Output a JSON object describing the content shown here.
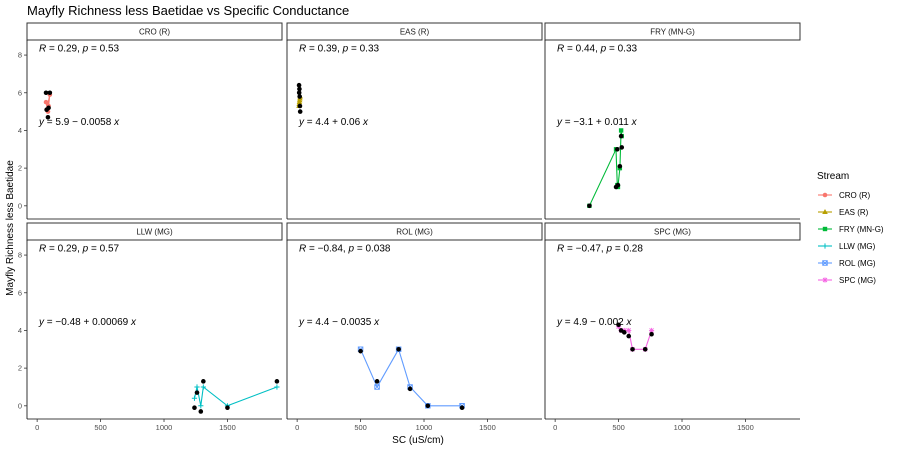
{
  "chart_data": {
    "type": "scatter",
    "title": "Mayfly Richness less Baetidae vs Specific Conductance",
    "xlabel": "SC (uS/cm)",
    "ylabel": "Mayfly Richness less Baetidae",
    "xlim": [
      -80,
      1930
    ],
    "ylim": [
      -0.7,
      8.8
    ],
    "xticks": [
      0,
      500,
      1000,
      1500
    ],
    "yticks": [
      0,
      2,
      4,
      6,
      8
    ],
    "legend": {
      "title": "Stream",
      "position": "right"
    },
    "panels": [
      {
        "strip": "CRO (R)",
        "series": "CRO (R)",
        "color": "#F8766D",
        "marker": "circle",
        "stat_R": "0.29",
        "stat_p": "0.53",
        "eq_a": "5.9",
        "eq_op": "−",
        "eq_b": "0.0058",
        "observed": [
          [
            70,
            6.0
          ],
          [
            85,
            4.7
          ],
          [
            90,
            5.2
          ],
          [
            100,
            6.0
          ],
          [
            75,
            5.1
          ]
        ],
        "fitted": [
          [
            70,
            5.5
          ],
          [
            85,
            5.0
          ],
          [
            90,
            5.3
          ],
          [
            100,
            5.9
          ],
          [
            75,
            5.1
          ]
        ]
      },
      {
        "strip": "EAS (R)",
        "series": "EAS (R)",
        "color": "#B79F00",
        "marker": "triangle",
        "stat_R": "0.39",
        "stat_p": "0.33",
        "eq_a": "4.4",
        "eq_op": "+",
        "eq_b": "0.06",
        "observed": [
          [
            15,
            6.4
          ],
          [
            18,
            6.2
          ],
          [
            20,
            5.8
          ],
          [
            22,
            5.3
          ],
          [
            24,
            5.0
          ],
          [
            16,
            6.0
          ]
        ],
        "fitted": [
          [
            15,
            5.3
          ],
          [
            18,
            5.5
          ],
          [
            20,
            5.6
          ],
          [
            22,
            5.7
          ],
          [
            24,
            5.8
          ],
          [
            16,
            5.4
          ]
        ]
      },
      {
        "strip": "FRY (MN-G)",
        "series": "FRY (MN-G)",
        "color": "#00BA38",
        "marker": "square",
        "stat_R": "0.44",
        "stat_p": "0.33",
        "eq_a": "−3.1",
        "eq_op": "+",
        "eq_b": "0.011",
        "observed": [
          [
            270,
            0.0
          ],
          [
            480,
            1.0
          ],
          [
            490,
            3.0
          ],
          [
            495,
            1.1
          ],
          [
            510,
            2.1
          ],
          [
            520,
            3.7
          ],
          [
            525,
            3.1
          ]
        ],
        "fitted": [
          [
            270,
            0.0
          ],
          [
            480,
            3.0
          ],
          [
            490,
            1.1
          ],
          [
            495,
            1.0
          ],
          [
            510,
            2.0
          ],
          [
            520,
            4.0
          ],
          [
            525,
            3.7
          ]
        ]
      },
      {
        "strip": "LLW (MG)",
        "series": "LLW (MG)",
        "color": "#00BFC4",
        "marker": "plus",
        "stat_R": "0.29",
        "stat_p": "0.57",
        "eq_a": "−0.48",
        "eq_op": "+",
        "eq_b": "0.00069",
        "observed": [
          [
            1240,
            -0.1
          ],
          [
            1260,
            0.7
          ],
          [
            1290,
            -0.3
          ],
          [
            1310,
            1.3
          ],
          [
            1500,
            -0.1
          ],
          [
            1890,
            1.3
          ]
        ],
        "fitted": [
          [
            1240,
            0.4
          ],
          [
            1260,
            1.0
          ],
          [
            1290,
            0.0
          ],
          [
            1310,
            1.0
          ],
          [
            1500,
            0.0
          ],
          [
            1890,
            1.0
          ]
        ]
      },
      {
        "strip": "ROL (MG)",
        "series": "ROL (MG)",
        "color": "#619CFF",
        "marker": "square-x",
        "stat_R": "−0.84",
        "stat_p": "0.038",
        "eq_a": "4.4",
        "eq_op": "−",
        "eq_b": "0.0035",
        "observed": [
          [
            500,
            2.9
          ],
          [
            630,
            1.3
          ],
          [
            800,
            3.0
          ],
          [
            890,
            0.9
          ],
          [
            1030,
            0.0
          ],
          [
            1300,
            -0.1
          ]
        ],
        "fitted": [
          [
            500,
            3.0
          ],
          [
            630,
            1.0
          ],
          [
            800,
            3.0
          ],
          [
            890,
            1.0
          ],
          [
            1030,
            0.0
          ],
          [
            1300,
            0.0
          ]
        ]
      },
      {
        "strip": "SPC (MG)",
        "series": "SPC (MG)",
        "color": "#F564E3",
        "marker": "star",
        "stat_R": "−0.47",
        "stat_p": "0.28",
        "eq_a": "4.9",
        "eq_op": "−",
        "eq_b": "0.002",
        "observed": [
          [
            500,
            4.3
          ],
          [
            520,
            4.0
          ],
          [
            545,
            3.9
          ],
          [
            580,
            3.7
          ],
          [
            610,
            3.0
          ],
          [
            710,
            3.0
          ],
          [
            760,
            3.8
          ]
        ],
        "fitted": [
          [
            500,
            4.2
          ],
          [
            520,
            4.0
          ],
          [
            545,
            4.0
          ],
          [
            580,
            4.0
          ],
          [
            610,
            3.0
          ],
          [
            710,
            3.0
          ],
          [
            760,
            4.0
          ]
        ]
      }
    ]
  }
}
